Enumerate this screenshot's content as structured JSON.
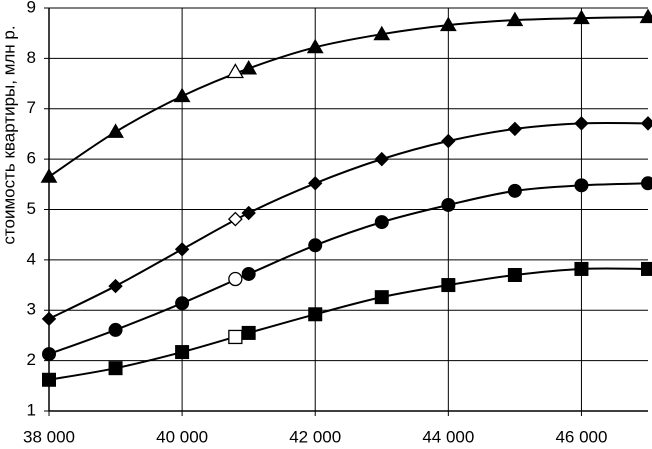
{
  "chart_data": {
    "type": "line",
    "y_label": "стоимость квартиры, млн р.",
    "x": [
      38000,
      39000,
      40000,
      41000,
      42000,
      43000,
      44000,
      45000,
      46000,
      47000
    ],
    "xlim": [
      38000,
      47000
    ],
    "xticks": [
      {
        "value": 38000,
        "label": "38 000"
      },
      {
        "value": 40000,
        "label": "40 000"
      },
      {
        "value": 42000,
        "label": "42 000"
      },
      {
        "value": 44000,
        "label": "44 000"
      },
      {
        "value": 46000,
        "label": "46 000"
      }
    ],
    "ylim": [
      1,
      9
    ],
    "yticks": [
      1,
      2,
      3,
      4,
      5,
      6,
      7,
      8,
      9
    ],
    "grid": true,
    "highlight_x": 40800,
    "series": [
      {
        "color": "#000000",
        "marker": "triangle",
        "values": [
          5.65,
          6.54,
          7.25,
          7.8,
          8.22,
          8.48,
          8.66,
          8.76,
          8.8,
          8.82
        ],
        "highlight_value": 7.73
      },
      {
        "color": "#000000",
        "marker": "diamond",
        "values": [
          2.83,
          3.48,
          4.21,
          4.93,
          5.52,
          6.0,
          6.36,
          6.6,
          6.71,
          6.71
        ],
        "highlight_value": 4.81
      },
      {
        "color": "#000000",
        "marker": "circle",
        "values": [
          2.13,
          2.61,
          3.14,
          3.72,
          4.29,
          4.75,
          5.09,
          5.37,
          5.48,
          5.52
        ],
        "highlight_value": 3.62
      },
      {
        "color": "#000000",
        "marker": "square",
        "values": [
          1.62,
          1.85,
          2.17,
          2.55,
          2.92,
          3.26,
          3.5,
          3.7,
          3.82,
          3.82
        ],
        "highlight_value": 2.47
      }
    ]
  }
}
